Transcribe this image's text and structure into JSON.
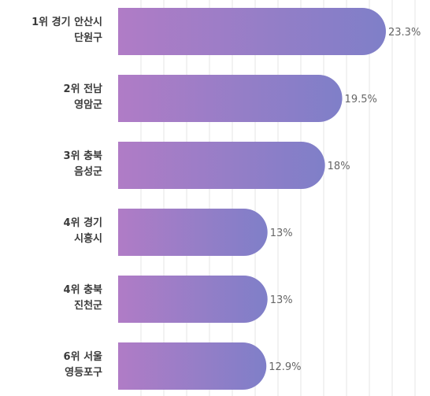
{
  "chart_data": {
    "type": "bar",
    "orientation": "horizontal",
    "categories": [
      [
        "1위 경기 안산시",
        "단원구"
      ],
      [
        "2위 전남",
        "영암군"
      ],
      [
        "3위 충북",
        "음성군"
      ],
      [
        "4위 경기",
        "시흥시"
      ],
      [
        "4위 충북",
        "진천군"
      ],
      [
        "6위 서울",
        "영등포구"
      ]
    ],
    "values": [
      23.3,
      19.5,
      18,
      13,
      13,
      12.9
    ],
    "value_labels": [
      "23.3%",
      "19.5%",
      "18%",
      "13%",
      "13%",
      "12.9%"
    ],
    "xlim": [
      0,
      24
    ],
    "grid": true,
    "colors": {
      "bar_start": "#b07cc6",
      "bar_end": "#7f7fc8",
      "grid": "#e6e6e6"
    }
  }
}
